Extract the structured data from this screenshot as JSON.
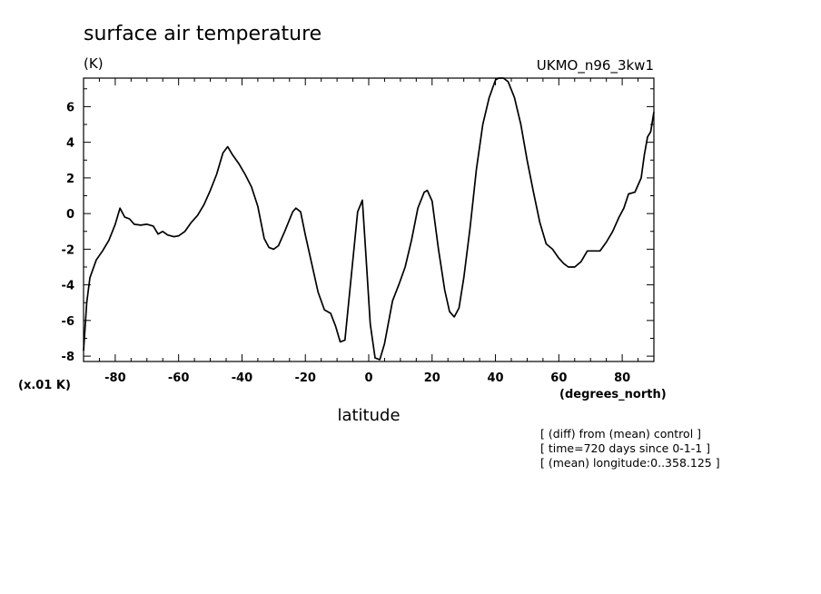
{
  "chart_data": {
    "type": "line",
    "title": "surface air temperature",
    "units": "(K)",
    "model": "UKMO_n96_3kw1",
    "xlabel": "latitude",
    "xunits": "(degrees_north)",
    "yscale_note": "(x.01 K)",
    "xlim": [
      -90,
      90
    ],
    "ylim": [
      -8.3,
      7.6
    ],
    "xticks": [
      -80,
      -60,
      -40,
      -20,
      0,
      20,
      40,
      60,
      80
    ],
    "yticks": [
      -8,
      -6,
      -4,
      -2,
      0,
      2,
      4,
      6
    ],
    "xtick_labels": [
      "-80",
      "-60",
      "-40",
      "-20",
      "0",
      "20",
      "40",
      "60",
      "80"
    ],
    "ytick_labels": [
      "-8",
      "-6",
      "-4",
      "-2",
      "0",
      "2",
      "4",
      "6"
    ],
    "notes": [
      "[ (diff) from (mean) control ]",
      "[ time=720 days since 0-1-1 ]",
      "[ (mean) longitude:0..358.125 ]"
    ],
    "series": [
      {
        "color": "#000000",
        "points": [
          [
            -90,
            -7.7
          ],
          [
            -89,
            -5.0
          ],
          [
            -88,
            -3.6
          ],
          [
            -86,
            -2.6
          ],
          [
            -84,
            -2.1
          ],
          [
            -82,
            -1.5
          ],
          [
            -80,
            -0.6
          ],
          [
            -78.5,
            0.3
          ],
          [
            -77,
            -0.2
          ],
          [
            -75.5,
            -0.3
          ],
          [
            -74,
            -0.6
          ],
          [
            -72,
            -0.65
          ],
          [
            -70,
            -0.6
          ],
          [
            -68,
            -0.7
          ],
          [
            -66.5,
            -1.15
          ],
          [
            -65,
            -1.0
          ],
          [
            -63.5,
            -1.2
          ],
          [
            -61.5,
            -1.3
          ],
          [
            -60,
            -1.25
          ],
          [
            -58,
            -1.0
          ],
          [
            -56,
            -0.5
          ],
          [
            -54,
            -0.1
          ],
          [
            -52,
            0.5
          ],
          [
            -50,
            1.3
          ],
          [
            -48,
            2.2
          ],
          [
            -46,
            3.4
          ],
          [
            -44.5,
            3.75
          ],
          [
            -43,
            3.3
          ],
          [
            -41,
            2.8
          ],
          [
            -39,
            2.2
          ],
          [
            -37,
            1.5
          ],
          [
            -35,
            0.4
          ],
          [
            -33,
            -1.4
          ],
          [
            -31.5,
            -1.9
          ],
          [
            -30,
            -2.0
          ],
          [
            -28.5,
            -1.8
          ],
          [
            -26.5,
            -1.0
          ],
          [
            -24,
            0.1
          ],
          [
            -23,
            0.3
          ],
          [
            -21.5,
            0.1
          ],
          [
            -20,
            -1.2
          ],
          [
            -18,
            -2.8
          ],
          [
            -16,
            -4.4
          ],
          [
            -14,
            -5.4
          ],
          [
            -12,
            -5.6
          ],
          [
            -10.5,
            -6.3
          ],
          [
            -9,
            -7.2
          ],
          [
            -7.5,
            -7.1
          ],
          [
            -5.5,
            -3.5
          ],
          [
            -3.5,
            0.1
          ],
          [
            -2,
            0.75
          ],
          [
            -1,
            -2.0
          ],
          [
            0.5,
            -6.2
          ],
          [
            2,
            -8.1
          ],
          [
            3.5,
            -8.2
          ],
          [
            5,
            -7.3
          ],
          [
            7.5,
            -4.9
          ],
          [
            9.5,
            -4.0
          ],
          [
            11.5,
            -3.0
          ],
          [
            13.5,
            -1.5
          ],
          [
            15.5,
            0.3
          ],
          [
            17.5,
            1.2
          ],
          [
            18.5,
            1.3
          ],
          [
            20,
            0.7
          ],
          [
            22,
            -2.0
          ],
          [
            24,
            -4.3
          ],
          [
            25.5,
            -5.5
          ],
          [
            27,
            -5.8
          ],
          [
            28.5,
            -5.3
          ],
          [
            30,
            -3.6
          ],
          [
            32,
            -0.8
          ],
          [
            34,
            2.5
          ],
          [
            36,
            5.0
          ],
          [
            38,
            6.5
          ],
          [
            40,
            7.5
          ],
          [
            41,
            7.6
          ],
          [
            42.5,
            7.7
          ],
          [
            44,
            7.4
          ],
          [
            46,
            6.5
          ],
          [
            48,
            5.0
          ],
          [
            50,
            3.0
          ],
          [
            52,
            1.2
          ],
          [
            54,
            -0.5
          ],
          [
            56,
            -1.7
          ],
          [
            58,
            -2.0
          ],
          [
            60,
            -2.5
          ],
          [
            61.5,
            -2.8
          ],
          [
            63,
            -3.0
          ],
          [
            65,
            -3.0
          ],
          [
            67,
            -2.7
          ],
          [
            69,
            -2.1
          ],
          [
            71,
            -2.1
          ],
          [
            73,
            -2.1
          ],
          [
            75,
            -1.6
          ],
          [
            77,
            -1.0
          ],
          [
            79,
            -0.2
          ],
          [
            80.5,
            0.3
          ],
          [
            82,
            1.1
          ],
          [
            84,
            1.2
          ],
          [
            86,
            2.0
          ],
          [
            87,
            3.3
          ],
          [
            88,
            4.3
          ],
          [
            89,
            4.6
          ],
          [
            90,
            5.7
          ]
        ]
      }
    ]
  }
}
